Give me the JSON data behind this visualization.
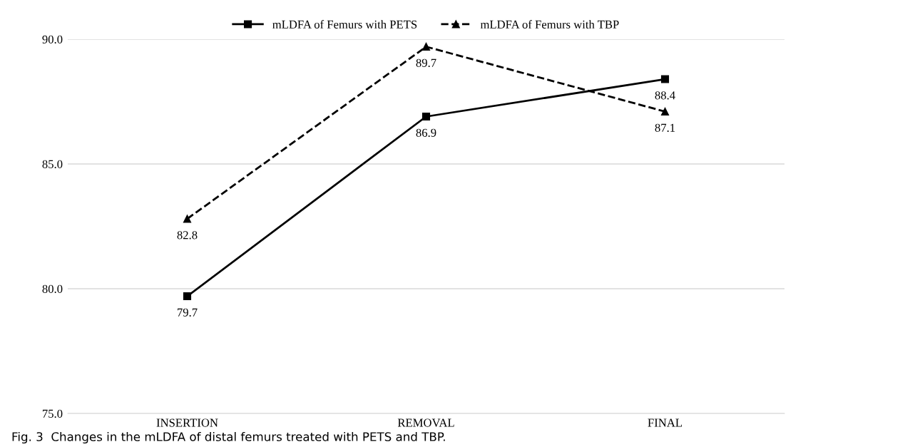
{
  "chart_data": {
    "type": "line",
    "categories": [
      "INSERTION",
      "REMOVAL",
      "FINAL"
    ],
    "series": [
      {
        "name": "mLDFA of Femurs with PETS",
        "color": "#000000",
        "values": [
          79.7,
          86.9,
          88.4
        ],
        "marker": "square",
        "line_style": "solid"
      },
      {
        "name": "mLDFA of Femurs with TBP",
        "color": "#000000",
        "values": [
          82.8,
          89.7,
          87.1
        ],
        "marker": "triangle",
        "line_style": "dashed"
      }
    ],
    "ylim": [
      75,
      90
    ],
    "yticks": [
      {
        "value": 75,
        "label": "75.0"
      },
      {
        "value": 80,
        "label": "80.0"
      },
      {
        "value": 85,
        "label": "85.0"
      },
      {
        "value": 90,
        "label": "90.0"
      }
    ],
    "grid": "y",
    "legend": "top",
    "data_labels": true,
    "annotations": [
      "Fig. 3  Changes in the mLDFA of distal femurs treated with PETS and TBP."
    ]
  }
}
